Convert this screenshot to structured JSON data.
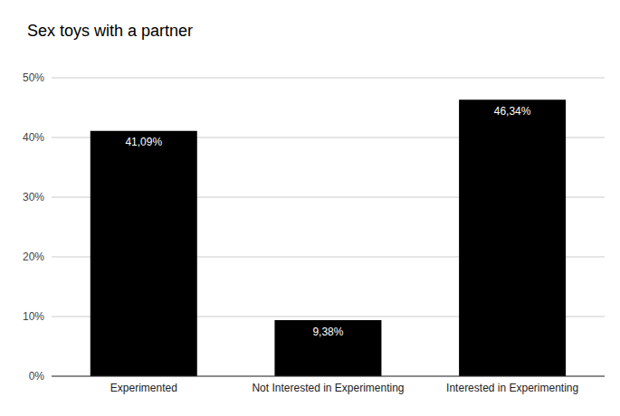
{
  "chart_data": {
    "type": "bar",
    "title": "Sex toys with a partner",
    "categories": [
      "Experimented",
      "Not Interested in Experimenting",
      "Interested in Experimenting"
    ],
    "values": [
      41.09,
      9.38,
      46.34
    ],
    "value_labels": [
      "41,09%",
      "9,38%",
      "46,34%"
    ],
    "color": "#000000",
    "ylim": [
      0,
      50
    ],
    "yticks": [
      {
        "value": 0,
        "label": "0%"
      },
      {
        "value": 10,
        "label": "10%"
      },
      {
        "value": 20,
        "label": "20%"
      },
      {
        "value": 30,
        "label": "30%"
      },
      {
        "value": 40,
        "label": "40%"
      },
      {
        "value": 50,
        "label": "50%"
      }
    ],
    "grid": true,
    "data_labels": true
  }
}
